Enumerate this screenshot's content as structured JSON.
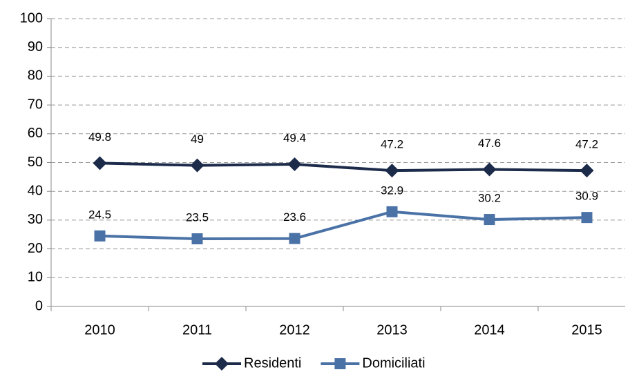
{
  "chart_data": {
    "type": "line",
    "categories": [
      "2010",
      "2011",
      "2012",
      "2013",
      "2014",
      "2015"
    ],
    "series": [
      {
        "name": "Residenti",
        "color": "#1c2b4a",
        "marker": "diamond",
        "values": [
          49.8,
          49,
          49.4,
          47.2,
          47.6,
          47.2
        ]
      },
      {
        "name": "Domiciliati",
        "color": "#4a72a6",
        "marker": "square",
        "values": [
          24.5,
          23.5,
          23.6,
          32.9,
          30.2,
          30.9
        ]
      }
    ],
    "ylim": [
      0,
      100
    ],
    "yticks": [
      0,
      10,
      20,
      30,
      40,
      50,
      60,
      70,
      80,
      90,
      100
    ],
    "grid": true,
    "legend": "bottom"
  }
}
